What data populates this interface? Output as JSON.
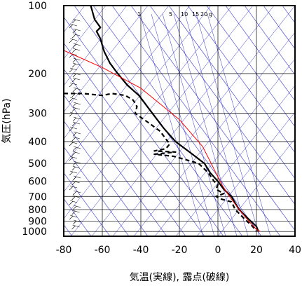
{
  "chart_data": {
    "type": "line",
    "title": "",
    "xlabel": "気温(実線), 露点(破線)",
    "ylabel": "気圧(hPa)",
    "xlim": [
      -80,
      40
    ],
    "ylim": [
      1050,
      100
    ],
    "y_scale": "log",
    "x_ticks": [
      "-80",
      "-60",
      "-40",
      "-20",
      "0",
      "20",
      "40"
    ],
    "y_ticks": [
      "100",
      "200",
      "300",
      "400",
      "500",
      "600",
      "700",
      "800",
      "900",
      "1000"
    ],
    "mixing_ratio_labels": [
      "1",
      "5",
      "10",
      "15",
      "20",
      "g"
    ],
    "grid": true,
    "colors": {
      "temperature": "#000000",
      "dewpoint": "#000000",
      "parcel": "#ff0000",
      "adiabats": "#3333cc",
      "grid": "#000000"
    },
    "series": [
      {
        "role": "temperature",
        "style": "solid",
        "points": [
          [
            -66,
            100
          ],
          [
            -64,
            115
          ],
          [
            -61,
            125
          ],
          [
            -63,
            130
          ],
          [
            -61,
            140
          ],
          [
            -60,
            150
          ],
          [
            -59,
            160
          ],
          [
            -56,
            180
          ],
          [
            -52,
            200
          ],
          [
            -47,
            225
          ],
          [
            -41,
            250
          ],
          [
            -34,
            300
          ],
          [
            -28,
            350
          ],
          [
            -22,
            400
          ],
          [
            -14,
            450
          ],
          [
            -7,
            500
          ],
          [
            -4,
            550
          ],
          [
            0,
            600
          ],
          [
            3,
            650
          ],
          [
            7,
            700
          ],
          [
            9,
            750
          ],
          [
            11,
            800
          ],
          [
            14,
            850
          ],
          [
            17,
            900
          ],
          [
            20,
            950
          ],
          [
            21,
            1000
          ]
        ]
      },
      {
        "role": "dewpoint",
        "style": "dashed",
        "points": [
          [
            -80,
            245
          ],
          [
            -70,
            245
          ],
          [
            -60,
            250
          ],
          [
            -55,
            245
          ],
          [
            -48,
            250
          ],
          [
            -44,
            262
          ],
          [
            -42,
            280
          ],
          [
            -43,
            300
          ],
          [
            -36,
            330
          ],
          [
            -30,
            360
          ],
          [
            -27,
            390
          ],
          [
            -25,
            410
          ],
          [
            -27,
            430
          ],
          [
            -33,
            440
          ],
          [
            -22,
            445
          ],
          [
            -33,
            455
          ],
          [
            -23,
            465
          ],
          [
            -17,
            480
          ],
          [
            -10,
            500
          ],
          [
            -5,
            550
          ],
          [
            -2,
            600
          ],
          [
            0,
            620
          ],
          [
            -1,
            650
          ],
          [
            3,
            680
          ],
          [
            -1,
            700
          ],
          [
            2,
            720
          ],
          [
            7,
            740
          ],
          [
            9,
            800
          ],
          [
            12,
            850
          ],
          [
            15,
            900
          ],
          [
            18,
            950
          ],
          [
            20,
            1000
          ]
        ]
      },
      {
        "role": "parcel",
        "style": "solid",
        "points": [
          [
            -80,
            158
          ],
          [
            -60,
            188
          ],
          [
            -40,
            232
          ],
          [
            -20,
            320
          ],
          [
            -8,
            420
          ],
          [
            -4,
            490
          ],
          [
            2,
            620
          ],
          [
            6,
            700
          ],
          [
            11,
            800
          ],
          [
            16,
            900
          ],
          [
            20,
            980
          ],
          [
            22,
            1000
          ]
        ]
      }
    ]
  }
}
